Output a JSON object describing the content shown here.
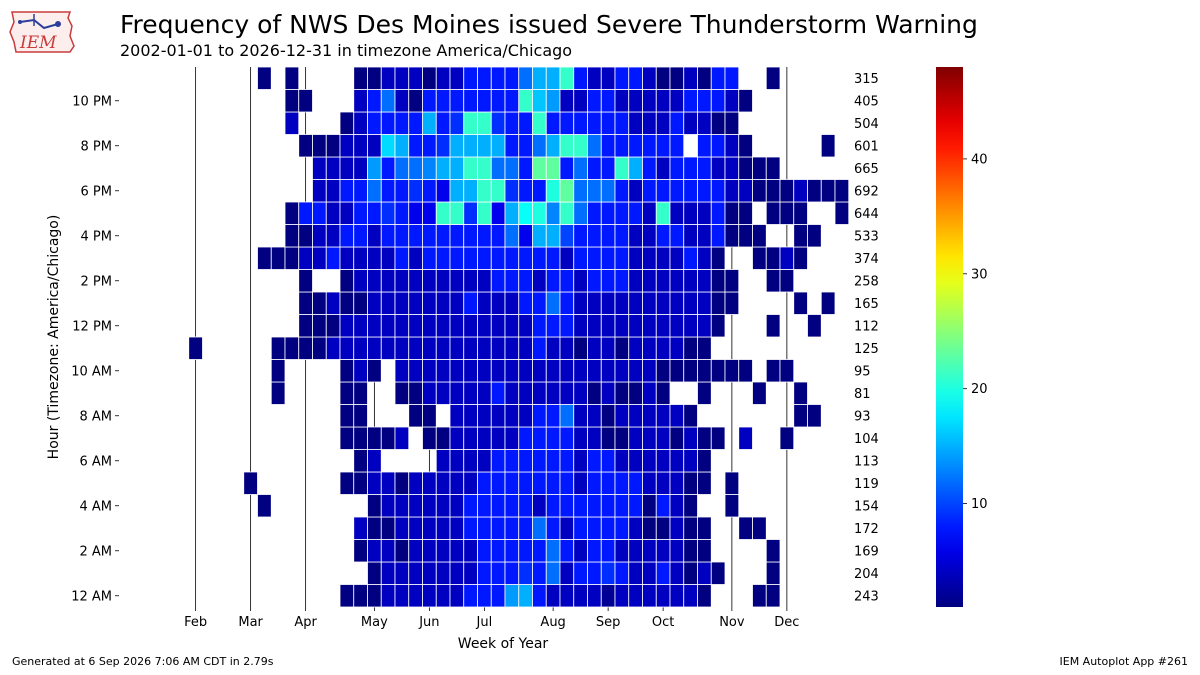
{
  "title": "Frequency of NWS Des Moines issued Severe Thunderstorm Warning",
  "subtitle": "2002-01-01 to 2026-12-31 in timezone America/Chicago",
  "footer_left": "Generated at 6 Sep 2026 7:06 AM CDT in 2.79s",
  "footer_right": "IEM Autoplot App #261",
  "logo_text": "IEM",
  "chart_data": {
    "type": "heatmap",
    "xlabel": "Week of Year",
    "ylabel": "Hour (Timezone: America/Chicago)",
    "month_labels": [
      "Feb",
      "Mar",
      "Apr",
      "May",
      "Jun",
      "Jul",
      "Aug",
      "Sep",
      "Oct",
      "Nov",
      "Dec"
    ],
    "month_start_weeks": [
      5,
      9,
      13,
      18,
      22,
      26,
      31,
      35,
      39,
      44,
      48
    ],
    "y_tick_labels": [
      "12 AM",
      "2 AM",
      "4 AM",
      "6 AM",
      "8 AM",
      "10 AM",
      "12 PM",
      "2 PM",
      "4 PM",
      "6 PM",
      "8 PM",
      "10 PM"
    ],
    "row_totals": [
      243,
      204,
      169,
      172,
      154,
      119,
      113,
      104,
      93,
      81,
      95,
      125,
      112,
      165,
      258,
      374,
      533,
      644,
      692,
      665,
      601,
      504,
      405,
      315
    ],
    "colorbar": {
      "colormap": "jet",
      "min": 1,
      "max": 48,
      "ticks": [
        10,
        20,
        30,
        40
      ]
    },
    "rows": [
      "                ...,,,,,,;;;ef;,,,,2,,,,,,.   ..           ",
      "                  .,,,,,,,;;;9;+,;;9;,,;,.,.   .           ",
      "                 .,,.,,,,,;;;;;+;,;;,,,,,..    .        .  ",
      "                 ,..,,,,,;;;;;+;,;;;;,..,..  ..             ",
      "          .       .,,,,,,;;;;;4;;;;;;;.;,.  .              ",
      "         .      ..,,.,,,,,;;;;;;;,;;;;,,,.. .              ",
      "                 .,    ,,,,;;;;;;,;;,,,,,,.                ",
      "                ...., ..,,,,,;;;;,,..,,,.,.. ,  .          ",
      "                ..   .. ,,,,,,;;+,,.,,,,,.       ..        ",
      "           .    ..  ..,,,,,;,,,,,,.,..,.  .   .  .         ",
      "           .    .,. ,,,,,,,,,,,,,,,,,,,....... ..          ",
      "     .     ....,,,,,,,,,,,,,,,;,,.,,.,,,,..                ",
      "             ...,,,,,,,,,,,,,,;;;,,,,,,,,,,.   .  .        ",
      "             ..,..,,,,,,,;,,,;;+;,,,,,,,,,,..    . .       ",
      "             .  .,,,,,,,,,,;;;,;;,;;;,,,,,,..  ..          ",
      "          ...,,;,,,,;,;;;;;;;;;;,;;;;,,,,;,.  ..,.        ",
      "            ..,,;;,;;;;;;;;;+6ffa;;;;,,;;,,;...  ..    .  ",
      "            .;;,,;;9;66ll9l6fjkdl+;;;;,l,,,;.. ...  . ,    ",
      "              ,,;;+;;9;6ffll9;;kn+++;,;;;;;;,,...,...   . ",
      "              ,,,,e;++dffll++;nn;+;;lf;,;;;,,...            ",
      "             ...,,,hf;;9ffff;;+fll+;;;;;; ;;,.     .     . ",
      "            ,   .,;;;;f;9ll9;;l;;;;;;,,,;,,..             . ",
      "            ..   ,;+,.;;;;;;;lge,,;;,,,,,;;;,.            . ",
      "          . .    ..,,,.,,;;;;+ffl;,,;;,..,.;;  .           "
    ]
  }
}
